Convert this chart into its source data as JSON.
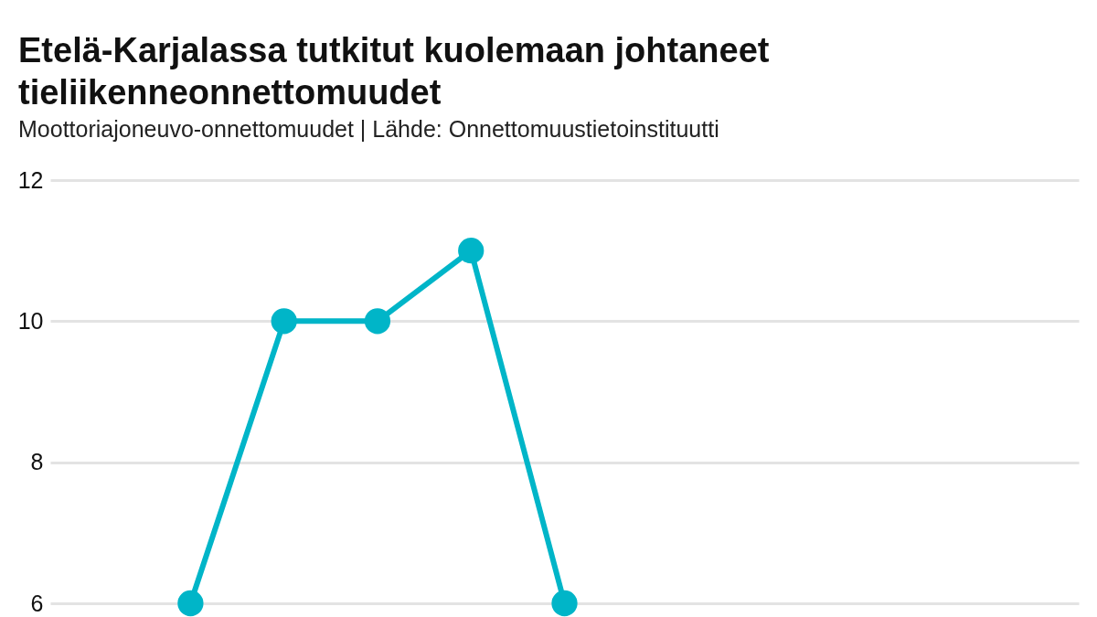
{
  "chart_data": {
    "type": "line",
    "title": [
      "Etelä-Karjalassa tutkitut kuolemaan johtaneet",
      "tieliikenneonnettomuudet"
    ],
    "subtitle": "Moottoriajoneuvo-onnettomuudet | Lähde: Onnettomuustietoinstituutti",
    "categories": [
      null,
      null,
      null,
      null,
      null,
      null,
      null,
      null,
      null,
      null,
      null
    ],
    "series": [
      {
        "color": "#00b5c8",
        "values": [
          null,
          6,
          10,
          10,
          11,
          6,
          null,
          null,
          null,
          null,
          null
        ]
      }
    ],
    "ylim": [
      6,
      12
    ],
    "yticks": [
      6,
      8,
      10,
      12
    ],
    "grid": "y",
    "marker": "circle",
    "line_style": "solid",
    "tick_labels": "y",
    "legend": false
  }
}
